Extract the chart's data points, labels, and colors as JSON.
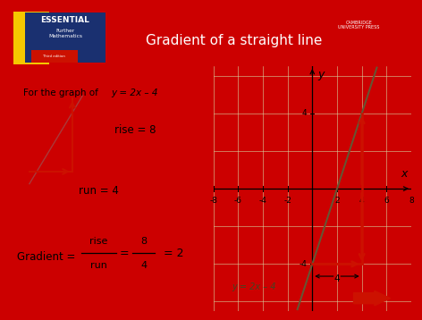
{
  "title": "Gradient of a straight line",
  "header_bg": "#cc0000",
  "left_panel_bg": "#add8e6",
  "right_panel_bg": "#f5f0c0",
  "line_eq": "y = 2x – 4",
  "text_for_graph_pre": "For the graph of ",
  "text_for_graph_eq": "y = 2x – 4",
  "rise_label": "rise = 8",
  "run_label": "run = 4",
  "xmin": -8,
  "xmax": 8,
  "ymin": -6.5,
  "ymax": 6.5,
  "xticks": [
    -8,
    -6,
    -4,
    -2,
    2,
    4,
    6,
    8
  ],
  "yticks_labeled": [
    -4,
    4
  ],
  "slope": 2,
  "intercept": -4,
  "rise_x": 4,
  "rise_y1": -4,
  "rise_y2": 4,
  "run_x1": 0,
  "run_x2": 4,
  "run_y": -4,
  "red_color": "#cc1100",
  "line_color": "#665533",
  "annotation_run_text": "4",
  "book_yellow": "#f5c800",
  "book_blue": "#1a3070",
  "book_red": "#cc1100"
}
